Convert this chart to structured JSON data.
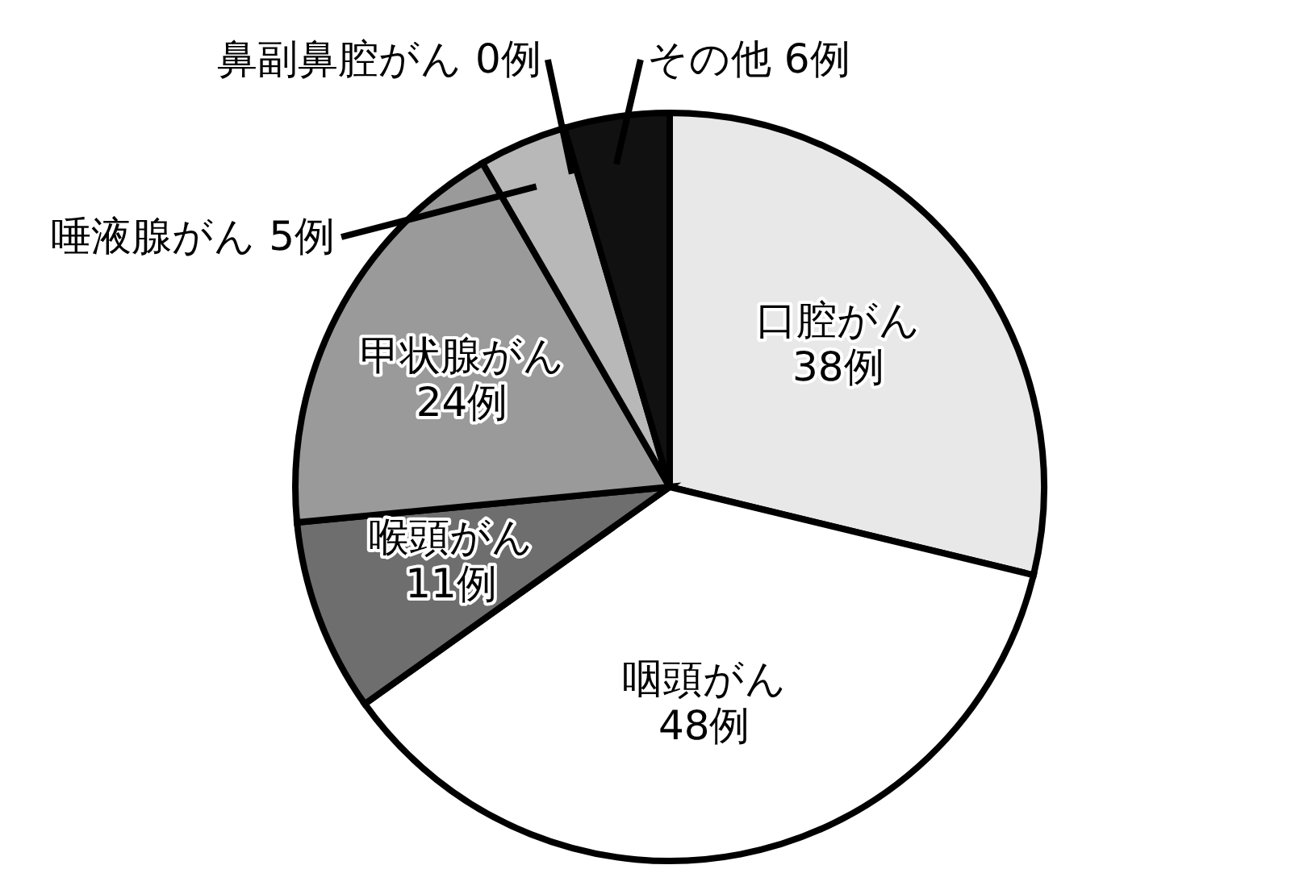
{
  "chart_data": {
    "type": "pie",
    "categories": [
      "口腔がん",
      "咽頭がん",
      "喉頭がん",
      "甲状腺がん",
      "唾液腺がん",
      "鼻副鼻腔がん",
      "その他"
    ],
    "values": [
      38,
      48,
      11,
      24,
      5,
      0,
      6
    ],
    "value_labels": [
      "38例",
      "48例",
      "11例",
      "24例",
      "5例",
      "0例",
      "6例"
    ],
    "colors": [
      "#e8e8e8",
      "#ffffff",
      "#6e6e6e",
      "#9a9a9a",
      "#b8b8b8",
      "#ffffff",
      "#111111"
    ],
    "legend": false
  }
}
